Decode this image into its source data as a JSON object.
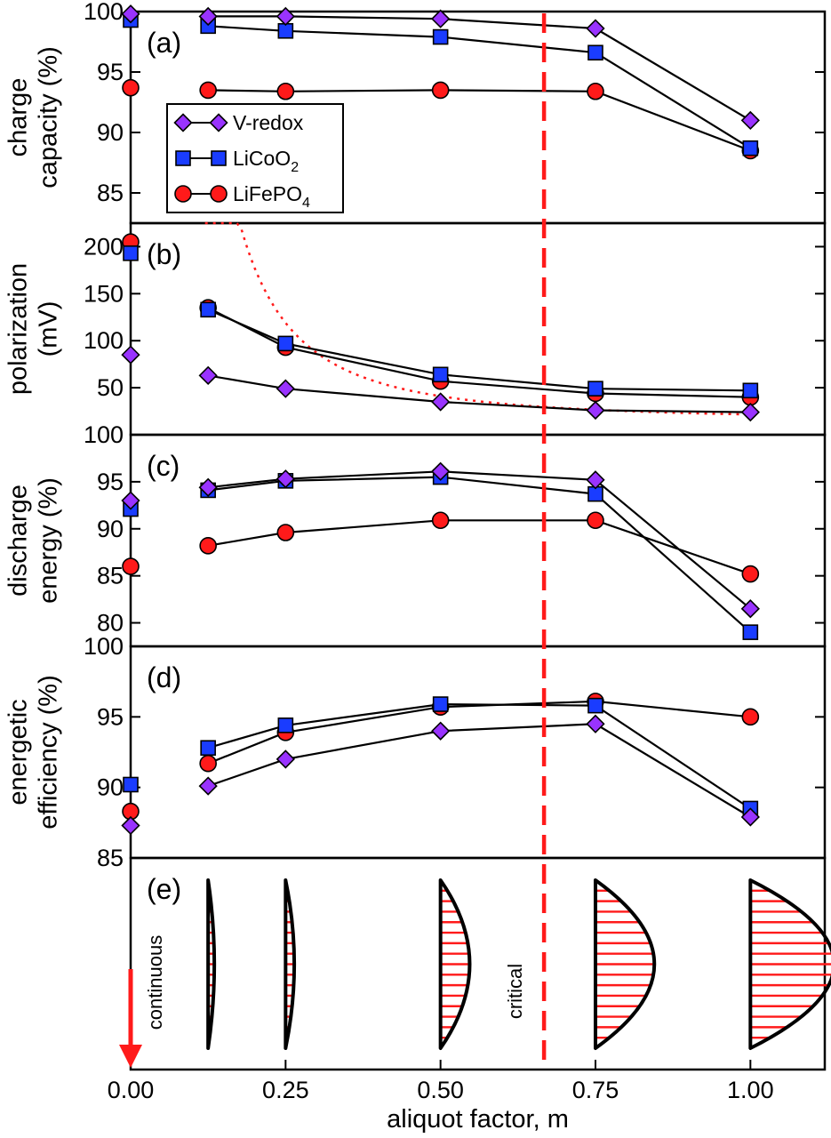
{
  "chart_data": {
    "type": "line",
    "x_label": "aliquot factor, m",
    "x_ticks": [
      "0.00",
      "0.25",
      "0.50",
      "0.75",
      "1.00"
    ],
    "x_tick_values": [
      0,
      0.25,
      0.5,
      0.75,
      1.0
    ],
    "xlim": [
      0,
      1.12
    ],
    "x": [
      0,
      0.125,
      0.25,
      0.5,
      0.75,
      1.0
    ],
    "critical_m": 0.667,
    "legend": [
      {
        "name": "V-redox",
        "base": "V-redox",
        "sub": "",
        "tail": "",
        "marker": "diamond",
        "color": "#9933ff"
      },
      {
        "name": "LiCoO2",
        "base": "LiCoO",
        "sub": "2",
        "tail": "",
        "marker": "square",
        "color": "#1a3cff"
      },
      {
        "name": "LiFePO4",
        "base": "LiFePO",
        "sub": "4",
        "tail": "",
        "marker": "circle",
        "color": "#ff1a1a"
      }
    ],
    "panels": [
      {
        "id": "a",
        "label": "(a)",
        "ylabel_lines": [
          "charge",
          "capacity (%)"
        ],
        "ylim": [
          82.5,
          100
        ],
        "yticks": [
          "85",
          "90",
          "95",
          "100"
        ],
        "ytick_values": [
          85,
          90,
          95,
          100
        ],
        "series": [
          {
            "name": "LiFePO4",
            "values": [
              93.7,
              93.5,
              93.4,
              93.5,
              93.4,
              88.5
            ]
          },
          {
            "name": "LiCoO2",
            "values": [
              99.3,
              98.8,
              98.4,
              97.9,
              96.6,
              88.7
            ]
          },
          {
            "name": "V-redox",
            "values": [
              99.8,
              99.6,
              99.6,
              99.4,
              98.6,
              91.0
            ]
          }
        ]
      },
      {
        "id": "b",
        "label": "(b)",
        "ylabel_lines": [
          "polarization",
          "(mV)"
        ],
        "ylim": [
          0,
          225
        ],
        "yticks": [
          "50",
          "100",
          "150",
          "200"
        ],
        "ytick_values": [
          50,
          100,
          150,
          200
        ],
        "series": [
          {
            "name": "LiFePO4",
            "values": [
              205,
              135,
              93,
              57,
              44,
              40
            ]
          },
          {
            "name": "LiCoO2",
            "values": [
              193,
              133,
              97,
              64,
              49,
              47
            ]
          },
          {
            "name": "V-redox",
            "values": [
              85,
              63,
              49,
              35,
              26,
              24
            ]
          }
        ],
        "fit_curve": {
          "name": "fit",
          "coefficient": 6.5,
          "offset": 15,
          "x_start": 0.12,
          "x_end": 1.0
        }
      },
      {
        "id": "c",
        "label": "(c)",
        "ylabel_lines": [
          "discharge",
          "energy (%)"
        ],
        "ylim": [
          77.5,
          100
        ],
        "yticks": [
          "80",
          "85",
          "90",
          "95",
          "100"
        ],
        "ytick_values": [
          80,
          85,
          90,
          95,
          100
        ],
        "series": [
          {
            "name": "LiFePO4",
            "values": [
              86.0,
              88.2,
              89.6,
              90.9,
              90.9,
              85.2
            ]
          },
          {
            "name": "LiCoO2",
            "values": [
              92.1,
              94.1,
              95.1,
              95.5,
              93.7,
              79.0
            ]
          },
          {
            "name": "V-redox",
            "values": [
              93.0,
              94.4,
              95.3,
              96.1,
              95.2,
              81.5
            ]
          }
        ]
      },
      {
        "id": "d",
        "label": "(d)",
        "ylabel_lines": [
          "energetic",
          "efficiency (%)"
        ],
        "ylim": [
          85,
          100
        ],
        "yticks": [
          "85",
          "90",
          "95",
          "100"
        ],
        "ytick_values": [
          85,
          90,
          95,
          100
        ],
        "series": [
          {
            "name": "LiFePO4",
            "values": [
              88.3,
              91.7,
              93.9,
              95.7,
              96.1,
              95.0
            ]
          },
          {
            "name": "LiCoO2",
            "values": [
              90.2,
              92.8,
              94.4,
              95.9,
              95.8,
              88.5
            ]
          },
          {
            "name": "V-redox",
            "values": [
              87.3,
              90.1,
              92.0,
              94.0,
              94.5,
              87.9
            ]
          }
        ]
      },
      {
        "id": "e",
        "label": "(e)",
        "profile_widths": [
          0.01,
          0.014,
          0.047,
          0.095,
          0.135
        ],
        "arrow_label": "continuous",
        "critical_label": "critical"
      }
    ]
  }
}
